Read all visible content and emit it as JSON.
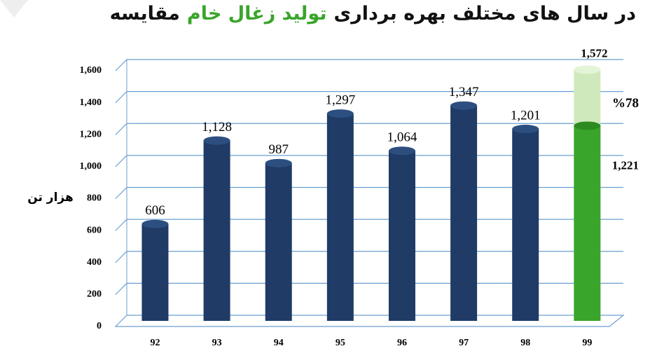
{
  "chart_data": {
    "type": "bar",
    "title": {
      "before": "مقایسه",
      "highlight": "تولید زغال خام",
      "after": "در سال های مختلف بهره برداری"
    },
    "y_label": "هزار تن",
    "categories": [
      "92",
      "93",
      "94",
      "95",
      "96",
      "97",
      "98",
      "99"
    ],
    "series": [
      {
        "color": "#1f3b66",
        "last_color": "#3aa52b",
        "values": [
          606,
          1128,
          987,
          1297,
          1064,
          1347,
          1201,
          1221
        ],
        "value_labels": [
          "606",
          "1,128",
          "987",
          "1,297",
          "1,064",
          "1,347",
          "1,201",
          "1,221"
        ]
      },
      {
        "color": "#cfe9bd",
        "values": [
          null,
          null,
          null,
          null,
          null,
          null,
          null,
          1572
        ],
        "value_labels": [
          null,
          null,
          null,
          null,
          null,
          null,
          null,
          "1,572"
        ]
      }
    ],
    "annotation": "%78",
    "ylim": [
      0,
      1600
    ],
    "yticks": [
      0,
      200,
      400,
      600,
      800,
      {
        "value": 1000,
        "label": "1,000"
      },
      {
        "value": 1200,
        "label": "1,200"
      },
      {
        "value": 1400,
        "label": "1,400"
      },
      {
        "value": 1600,
        "label": "1,600"
      }
    ],
    "grid": true
  }
}
